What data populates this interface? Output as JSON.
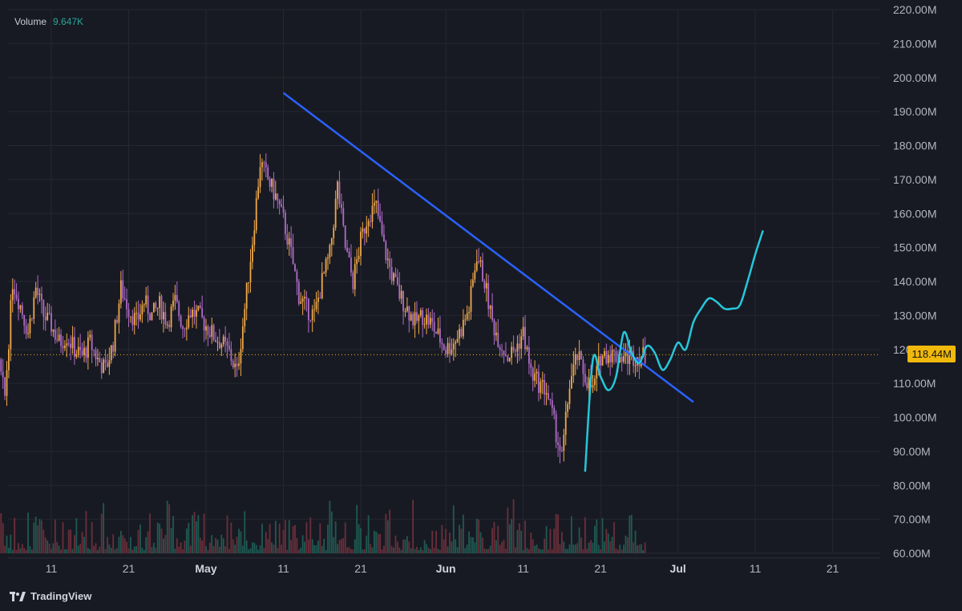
{
  "legend": {
    "label": "Volume",
    "value": "9.647K"
  },
  "brand": {
    "icon": "tradingview-logo-icon",
    "name": "TradingView"
  },
  "last_price": {
    "label": "118.44M",
    "value": 118.44
  },
  "colors": {
    "background": "#181a23",
    "candle": "#f0a848",
    "candle_down": "#b06cc8",
    "volume_up": "#1f5a52",
    "volume_down": "#6a2f3a",
    "trendline": "#2962ff",
    "projection": "#26c6da",
    "last_price": "#f0b90b",
    "grid": "#242733"
  },
  "chart_data": {
    "type": "line",
    "title": "",
    "xlabel": "",
    "ylabel": "",
    "ylim": [
      60,
      220
    ],
    "y_unit": "M",
    "grid": true,
    "legend_position": "top-left",
    "y_ticks": [
      "220.00M",
      "210.00M",
      "200.00M",
      "190.00M",
      "180.00M",
      "170.00M",
      "160.00M",
      "150.00M",
      "140.00M",
      "130.00M",
      "120.00M",
      "110.00M",
      "100.00M",
      "90.00M",
      "80.00M",
      "70.00M",
      "60.00M"
    ],
    "x_ticks": [
      "11",
      "21",
      "May",
      "11",
      "21",
      "Jun",
      "11",
      "21",
      "Jul",
      "11",
      "21"
    ],
    "x_tick_days": [
      11,
      21,
      31,
      41,
      51,
      62,
      72,
      82,
      92,
      102,
      112
    ],
    "x_axis_note": "day index: 1 = Apr 1",
    "series": [
      {
        "name": "",
        "kind": "price",
        "x": [
          1,
          2,
          3,
          4,
          5,
          6,
          7,
          8,
          9,
          10,
          11,
          12,
          13,
          14,
          15,
          16,
          17,
          18,
          19,
          20,
          21,
          22,
          23,
          24,
          25,
          26,
          27,
          28,
          29,
          30,
          31,
          32,
          33,
          34,
          35,
          36,
          37,
          38,
          39,
          40,
          41,
          42,
          43,
          44,
          45,
          46,
          47,
          48,
          49,
          50,
          51,
          52,
          53,
          54,
          55,
          56,
          57,
          58,
          59,
          60,
          61,
          62,
          63,
          64,
          65,
          66,
          67,
          68,
          69,
          70,
          71,
          72,
          73,
          74,
          75,
          76,
          77,
          78,
          79,
          80,
          81,
          82,
          83,
          84,
          85,
          86,
          87,
          88
        ],
        "values": [
          125,
          112,
          103,
          118,
          106,
          140,
          133,
          125,
          138,
          130,
          127,
          122,
          124,
          120,
          118,
          122,
          117,
          114,
          122,
          138,
          132,
          128,
          134,
          130,
          133,
          128,
          134,
          127,
          131,
          130,
          127,
          124,
          122,
          119,
          113,
          132,
          152,
          175,
          170,
          165,
          158,
          148,
          136,
          132,
          130,
          140,
          148,
          168,
          150,
          140,
          152,
          160,
          162,
          150,
          142,
          136,
          132,
          128,
          130,
          128,
          124,
          120,
          122,
          126,
          132,
          148,
          140,
          128,
          122,
          118,
          120,
          125,
          113,
          110,
          108,
          98,
          88,
          110,
          118,
          112,
          108,
          118,
          119,
          118,
          118,
          118,
          118,
          118
        ]
      },
      {
        "name": "",
        "kind": "trendline",
        "x": [
          41,
          94
        ],
        "values": [
          195.5,
          104.5
        ]
      },
      {
        "name": "",
        "kind": "projection",
        "x": [
          80,
          81,
          82,
          83,
          84,
          85,
          86,
          87,
          88,
          89,
          90,
          91,
          92,
          93,
          94,
          95,
          96,
          97,
          98,
          99,
          100,
          101,
          102,
          103
        ],
        "values": [
          84,
          117,
          112,
          108,
          112,
          125,
          119,
          116,
          121,
          119,
          114,
          117,
          122,
          120,
          128,
          132,
          135,
          134,
          132,
          132,
          133,
          140,
          148,
          155
        ]
      }
    ]
  }
}
